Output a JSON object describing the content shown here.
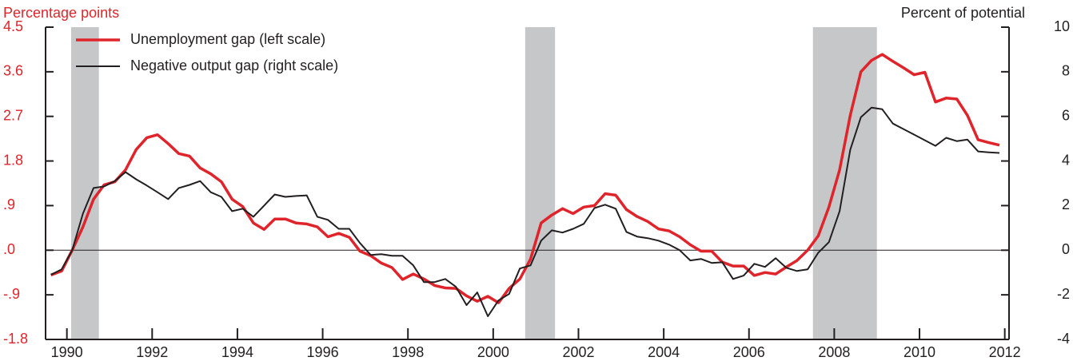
{
  "chart_data": {
    "type": "line",
    "ylabel": "Percentage points",
    "y2label": "Percent of potential",
    "x_start": 1990.125,
    "x_step": 0.25,
    "xlim": [
      1990,
      2012.6
    ],
    "xticks": [
      {
        "value": 1990.5,
        "label": "1990"
      },
      {
        "value": 1992.5,
        "label": "1992"
      },
      {
        "value": 1994.5,
        "label": "1994"
      },
      {
        "value": 1996.5,
        "label": "1996"
      },
      {
        "value": 1998.5,
        "label": "1998"
      },
      {
        "value": 2000.5,
        "label": "2000"
      },
      {
        "value": 2002.5,
        "label": "2002"
      },
      {
        "value": 2004.5,
        "label": "2004"
      },
      {
        "value": 2006.5,
        "label": "2006"
      },
      {
        "value": 2008.5,
        "label": "2008"
      },
      {
        "value": 2010.5,
        "label": "2010"
      },
      {
        "value": 2012.5,
        "label": "2012"
      }
    ],
    "ylim": [
      -1.8,
      4.5
    ],
    "yticks": [
      4.5,
      3.6,
      2.7,
      1.8,
      {
        "value": 0.9,
        "label": ".9"
      },
      {
        "value": 0,
        "label": ".0"
      },
      {
        "value": -0.9,
        "label": "-.9"
      },
      -1.8
    ],
    "y2lim": [
      -4,
      10
    ],
    "y2ticks": [
      10,
      8,
      6,
      4,
      2,
      0,
      -2,
      -4
    ],
    "recessions": [
      [
        1990.6,
        1991.25
      ],
      [
        2001.25,
        2001.95
      ],
      [
        2008.0,
        2009.5
      ]
    ],
    "recession_color": "#c6c7c9",
    "series": [
      {
        "name": "Unemployment gap (left scale)",
        "color": "#e0242b",
        "axis": "y",
        "values": [
          -0.5,
          -0.42,
          0,
          0.47,
          1.03,
          1.32,
          1.38,
          1.62,
          2.03,
          2.27,
          2.33,
          2.15,
          1.95,
          1.9,
          1.66,
          1.54,
          1.38,
          1.03,
          0.88,
          0.55,
          0.42,
          0.63,
          0.63,
          0.55,
          0.53,
          0.47,
          0.27,
          0.34,
          0.26,
          -0.02,
          -0.11,
          -0.26,
          -0.35,
          -0.59,
          -0.48,
          -0.58,
          -0.71,
          -0.76,
          -0.77,
          -0.92,
          -1.03,
          -0.93,
          -1.06,
          -0.77,
          -0.58,
          -0.18,
          0.55,
          0.71,
          0.84,
          0.74,
          0.87,
          0.9,
          1.14,
          1.11,
          0.82,
          0.68,
          0.58,
          0.43,
          0.39,
          0.27,
          0.11,
          -0.02,
          -0.02,
          -0.24,
          -0.32,
          -0.32,
          -0.51,
          -0.45,
          -0.48,
          -0.34,
          -0.21,
          0,
          0.29,
          0.87,
          1.62,
          2.72,
          3.6,
          3.83,
          3.95,
          3.81,
          3.68,
          3.54,
          3.59,
          2.99,
          3.07,
          3.05,
          2.72,
          2.23,
          2.17,
          2.12
        ]
      },
      {
        "name": "Negative output gap (right scale)",
        "color": "#231f20",
        "axis": "y2",
        "values": [
          -1.1,
          -0.86,
          0,
          1.64,
          2.79,
          2.86,
          3.1,
          3.5,
          3.18,
          2.9,
          2.6,
          2.29,
          2.79,
          2.93,
          3.1,
          2.6,
          2.39,
          1.75,
          1.86,
          1.5,
          2.0,
          2.5,
          2.39,
          2.43,
          2.46,
          1.5,
          1.36,
          0.96,
          0.96,
          0.32,
          -0.21,
          -0.18,
          -0.25,
          -0.25,
          -0.68,
          -1.43,
          -1.43,
          -1.29,
          -1.64,
          -2.46,
          -1.89,
          -2.96,
          -2.25,
          -1.96,
          -0.82,
          -0.68,
          0.43,
          0.89,
          0.79,
          0.96,
          1.18,
          1.89,
          2.04,
          1.86,
          0.82,
          0.61,
          0.54,
          0.43,
          0.25,
          0,
          -0.46,
          -0.39,
          -0.57,
          -0.54,
          -1.29,
          -1.14,
          -0.61,
          -0.75,
          -0.36,
          -0.79,
          -0.93,
          -0.86,
          -0.11,
          0.36,
          1.75,
          4.5,
          5.96,
          6.39,
          6.32,
          5.68,
          5.43,
          5.18,
          4.93,
          4.68,
          5.04,
          4.89,
          4.96,
          4.43,
          4.39,
          4.36
        ]
      }
    ]
  }
}
